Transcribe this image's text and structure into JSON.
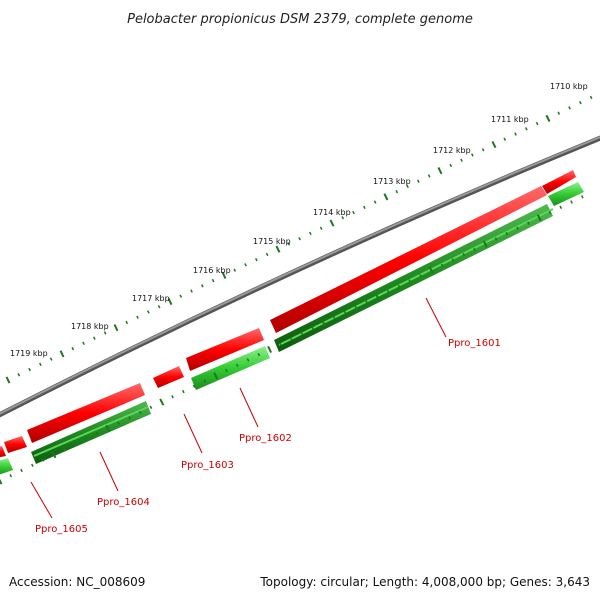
{
  "title": "Pelobacter propionicus DSM 2379, complete genome",
  "accession": "Accession: NC_008609",
  "summary": "Topology: circular; Length: 4,008,000 bp; Genes: 3,643",
  "colors": {
    "backbone": "#7a7a7a",
    "forward_gene": "#ff0000",
    "reverse_gene": "#33cc33",
    "reverse_gene_dark": "#1f8a1f",
    "tick": "#1a7a1a",
    "gene_label": "#cc0000"
  },
  "kbp_labels": [
    "1710 kbp",
    "1711 kbp",
    "1712 kbp",
    "1713 kbp",
    "1714 kbp",
    "1715 kbp",
    "1716 kbp",
    "1717 kbp",
    "1718 kbp",
    "1719 kbp"
  ],
  "genes": [
    {
      "name": "Ppro_1601"
    },
    {
      "name": "Ppro_1602"
    },
    {
      "name": "Ppro_1603"
    },
    {
      "name": "Ppro_1604"
    },
    {
      "name": "Ppro_1605"
    }
  ]
}
